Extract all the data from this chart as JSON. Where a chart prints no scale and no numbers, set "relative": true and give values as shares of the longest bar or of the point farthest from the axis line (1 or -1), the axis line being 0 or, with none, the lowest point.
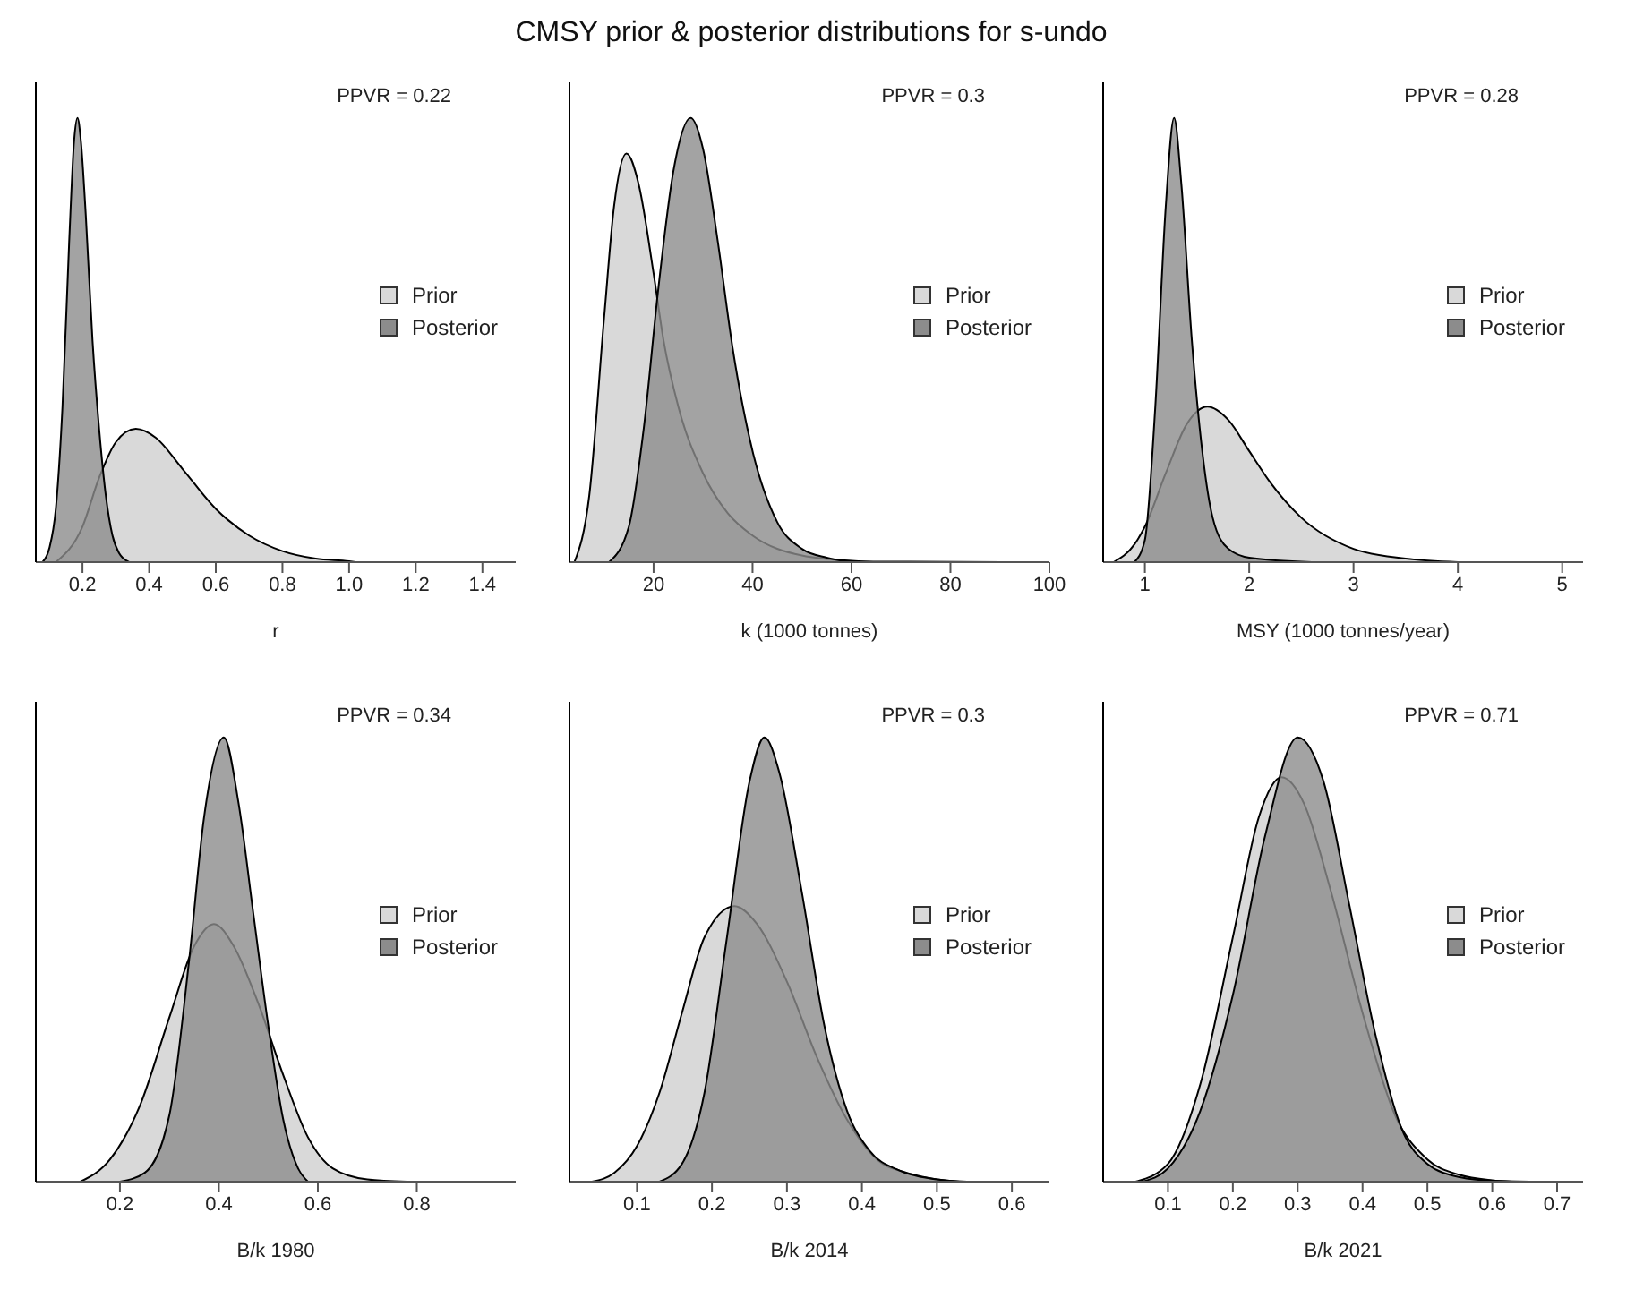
{
  "chart_data": [
    {
      "type": "area",
      "xlabel": "r",
      "relative": true,
      "legend": "right",
      "annotations": [
        "PPVR = 0.22"
      ],
      "xlim": [
        0.06,
        1.5
      ],
      "xticks": [
        0.2,
        0.4,
        0.6,
        0.8,
        {
          "value": 1,
          "label": "1.0"
        },
        1.2,
        1.4
      ],
      "series": [
        {
          "name": "Prior",
          "color": "#d9d9d9",
          "x": [
            0.12,
            0.2,
            0.25,
            0.3,
            0.36,
            0.42,
            0.5,
            0.6,
            0.7,
            0.8,
            0.9,
            1.0,
            1.02
          ],
          "values": [
            0,
            0.08,
            0.19,
            0.27,
            0.3,
            0.28,
            0.21,
            0.12,
            0.06,
            0.025,
            0.008,
            0.002,
            0
          ]
        },
        {
          "name": "Posterior",
          "color": "#8c8c8c",
          "x": [
            0.08,
            0.1,
            0.12,
            0.14,
            0.16,
            0.175,
            0.185,
            0.195,
            0.21,
            0.23,
            0.25,
            0.27,
            0.29,
            0.31,
            0.34
          ],
          "values": [
            0,
            0.03,
            0.12,
            0.35,
            0.72,
            0.95,
            1,
            0.95,
            0.78,
            0.5,
            0.3,
            0.15,
            0.06,
            0.02,
            0
          ]
        }
      ]
    },
    {
      "type": "area",
      "title": "CMSY prior & posterior distributions for s-undo",
      "xlabel": "k (1000 tonnes)",
      "relative": true,
      "legend": "right",
      "annotations": [
        "PPVR = 0.3"
      ],
      "xlim": [
        3,
        100
      ],
      "xticks": [
        20,
        40,
        60,
        80,
        100
      ],
      "series": [
        {
          "name": "Prior",
          "color": "#d9d9d9",
          "x": [
            4,
            7,
            10,
            12,
            14.5,
            17,
            20,
            22,
            25,
            30,
            35,
            40,
            50,
            60,
            66,
            92
          ],
          "values": [
            0,
            0.15,
            0.55,
            0.8,
            0.92,
            0.85,
            0.65,
            0.5,
            0.35,
            0.2,
            0.11,
            0.06,
            0.015,
            0.003,
            0.001,
            0
          ]
        },
        {
          "name": "Posterior",
          "color": "#8c8c8c",
          "x": [
            11,
            15,
            18,
            21,
            24,
            27.5,
            30,
            33,
            36,
            40,
            45,
            50,
            55,
            60
          ],
          "values": [
            0,
            0.08,
            0.3,
            0.62,
            0.88,
            1,
            0.93,
            0.72,
            0.48,
            0.25,
            0.09,
            0.03,
            0.01,
            0
          ]
        }
      ]
    },
    {
      "type": "area",
      "xlabel": "MSY (1000 tonnes/year)",
      "relative": true,
      "legend": "right",
      "annotations": [
        "PPVR = 0.28"
      ],
      "xlim": [
        0.6,
        5.2
      ],
      "xticks": [
        1,
        2,
        3,
        4,
        5
      ],
      "series": [
        {
          "name": "Prior",
          "color": "#d9d9d9",
          "x": [
            0.7,
            0.9,
            1.0,
            1.2,
            1.4,
            1.6,
            1.8,
            2.0,
            2.2,
            2.5,
            3.0,
            3.5,
            4.0
          ],
          "values": [
            0,
            0.04,
            0.08,
            0.2,
            0.31,
            0.35,
            0.32,
            0.25,
            0.18,
            0.1,
            0.03,
            0.008,
            0
          ]
        },
        {
          "name": "Posterior",
          "color": "#8c8c8c",
          "x": [
            0.9,
            1.0,
            1.1,
            1.2,
            1.28,
            1.35,
            1.45,
            1.55,
            1.65,
            1.8,
            2.0,
            2.6
          ],
          "values": [
            0,
            0.05,
            0.35,
            0.8,
            1,
            0.85,
            0.5,
            0.25,
            0.1,
            0.03,
            0.01,
            0
          ]
        }
      ]
    },
    {
      "type": "area",
      "xlabel": "B/k 1980",
      "relative": true,
      "legend": "right",
      "annotations": [
        "PPVR = 0.34"
      ],
      "xlim": [
        0.03,
        1.0
      ],
      "xticks": [
        0.2,
        0.4,
        0.6,
        0.8
      ],
      "series": [
        {
          "name": "Prior",
          "color": "#d9d9d9",
          "x": [
            0.12,
            0.18,
            0.24,
            0.3,
            0.35,
            0.39,
            0.43,
            0.48,
            0.53,
            0.58,
            0.63,
            0.7,
            0.78
          ],
          "values": [
            0,
            0.05,
            0.17,
            0.37,
            0.53,
            0.58,
            0.53,
            0.4,
            0.24,
            0.1,
            0.03,
            0.005,
            0
          ]
        },
        {
          "name": "Posterior",
          "color": "#8c8c8c",
          "x": [
            0.2,
            0.25,
            0.3,
            0.34,
            0.37,
            0.41,
            0.44,
            0.47,
            0.5,
            0.53,
            0.56,
            0.58
          ],
          "values": [
            0,
            0.02,
            0.15,
            0.5,
            0.82,
            1,
            0.85,
            0.6,
            0.35,
            0.14,
            0.03,
            0
          ]
        }
      ]
    },
    {
      "type": "area",
      "xlabel": "B/k 2014",
      "relative": true,
      "legend": "right",
      "annotations": [
        "PPVR = 0.3"
      ],
      "xlim": [
        0.01,
        0.65
      ],
      "xticks": [
        0.1,
        0.2,
        0.3,
        0.4,
        0.5,
        0.6
      ],
      "series": [
        {
          "name": "Prior",
          "color": "#d9d9d9",
          "x": [
            0.04,
            0.07,
            0.1,
            0.13,
            0.16,
            0.19,
            0.23,
            0.26,
            0.3,
            0.34,
            0.38,
            0.42,
            0.46,
            0.5,
            0.54
          ],
          "values": [
            0,
            0.02,
            0.08,
            0.2,
            0.38,
            0.55,
            0.62,
            0.58,
            0.45,
            0.28,
            0.14,
            0.05,
            0.02,
            0.005,
            0
          ]
        },
        {
          "name": "Posterior",
          "color": "#8c8c8c",
          "x": [
            0.13,
            0.16,
            0.19,
            0.22,
            0.25,
            0.27,
            0.29,
            0.32,
            0.35,
            0.38,
            0.41,
            0.45,
            0.5,
            0.53
          ],
          "values": [
            0,
            0.04,
            0.2,
            0.55,
            0.9,
            1,
            0.92,
            0.65,
            0.35,
            0.16,
            0.07,
            0.025,
            0.005,
            0
          ]
        }
      ]
    },
    {
      "type": "area",
      "xlabel": "B/k 2021",
      "relative": true,
      "legend": "right",
      "annotations": [
        "PPVR = 0.71"
      ],
      "xlim": [
        0,
        0.74
      ],
      "xticks": [
        0.1,
        0.2,
        0.3,
        0.4,
        0.5,
        0.6,
        0.7
      ],
      "series": [
        {
          "name": "Prior",
          "color": "#d9d9d9",
          "x": [
            0.05,
            0.1,
            0.15,
            0.2,
            0.24,
            0.275,
            0.31,
            0.35,
            0.4,
            0.45,
            0.5,
            0.55,
            0.6,
            0.63
          ],
          "values": [
            0,
            0.04,
            0.22,
            0.55,
            0.82,
            0.91,
            0.85,
            0.66,
            0.38,
            0.15,
            0.05,
            0.015,
            0.003,
            0
          ]
        },
        {
          "name": "Posterior",
          "color": "#8c8c8c",
          "x": [
            0.06,
            0.1,
            0.15,
            0.2,
            0.25,
            0.3,
            0.34,
            0.38,
            0.42,
            0.46,
            0.5,
            0.55,
            0.6,
            0.67
          ],
          "values": [
            0,
            0.03,
            0.16,
            0.42,
            0.78,
            1,
            0.9,
            0.62,
            0.33,
            0.12,
            0.04,
            0.01,
            0.002,
            0
          ]
        }
      ]
    }
  ]
}
